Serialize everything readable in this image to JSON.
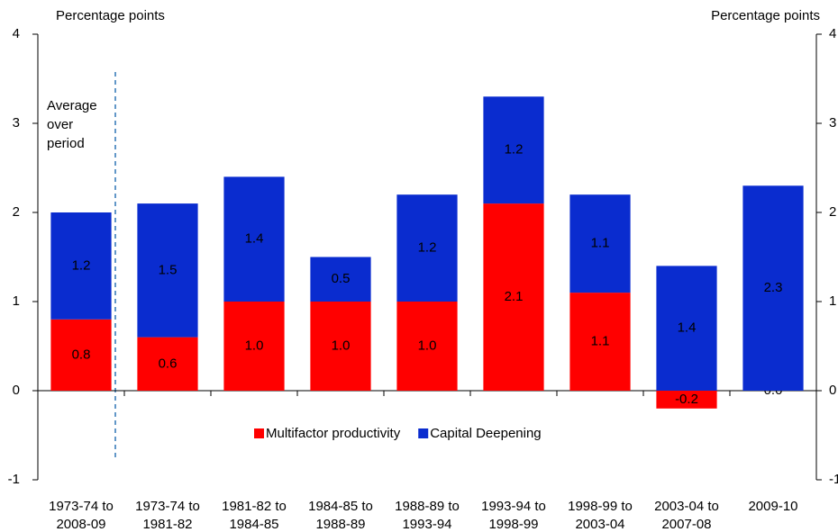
{
  "chart_data": {
    "type": "bar",
    "stacked": true,
    "y_label": "Percentage points",
    "y2_label": "Percentage points",
    "annotation": [
      "Average",
      "over",
      "period"
    ],
    "categories": [
      [
        "1973-74 to",
        "2008-09"
      ],
      [
        "1973-74 to",
        "1981-82"
      ],
      [
        "1981-82 to",
        "1984-85"
      ],
      [
        "1984-85 to",
        "1988-89"
      ],
      [
        "1988-89 to",
        "1993-94"
      ],
      [
        "1993-94 to",
        "1998-99"
      ],
      [
        "1998-99 to",
        "2003-04"
      ],
      [
        "2003-04 to",
        "2007-08"
      ],
      [
        "2009-10"
      ]
    ],
    "series": [
      {
        "name": "Multifactor productivity",
        "color": "#ff0000",
        "values": [
          0.8,
          0.6,
          1.0,
          1.0,
          1.0,
          2.1,
          1.1,
          -0.2,
          0.0
        ],
        "value_labels": [
          "0.8",
          "0.6",
          "1.0",
          "1.0",
          "1.0",
          "2.1",
          "1.1",
          "-0.2",
          "0.0"
        ]
      },
      {
        "name": "Capital Deepening",
        "color": "#0a2ccf",
        "values": [
          1.2,
          1.5,
          1.4,
          0.5,
          1.2,
          1.2,
          1.1,
          1.4,
          2.3
        ],
        "value_labels": [
          "1.2",
          "1.5",
          "1.4",
          "0.5",
          "1.2",
          "1.2",
          "1.1",
          "1.4",
          "2.3"
        ]
      }
    ],
    "ylim": [
      -1,
      4
    ],
    "yticks": [
      -1,
      0,
      1,
      2,
      3,
      4
    ],
    "y2lim": [
      -1,
      4
    ],
    "y2ticks": [
      -1,
      0,
      1,
      2,
      3,
      4
    ]
  }
}
